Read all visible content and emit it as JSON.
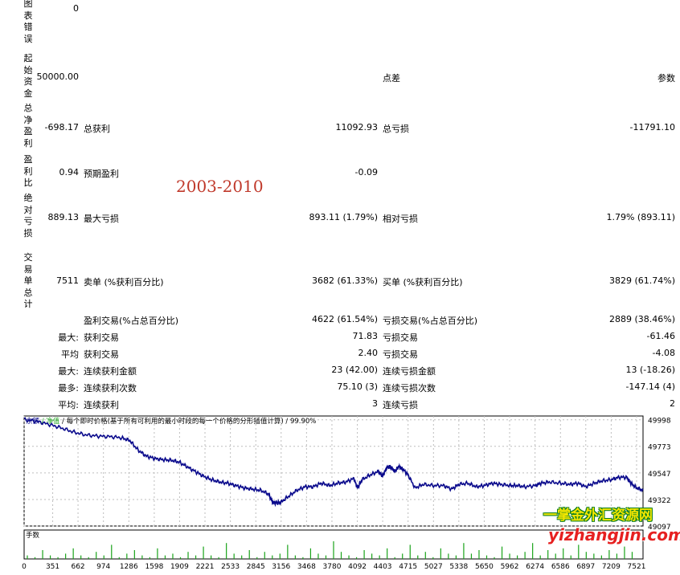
{
  "report": {
    "chart_errors": {
      "label": "图表错误",
      "value": "0"
    },
    "initial_deposit": {
      "label": "起始资金",
      "value": "50000.00",
      "spread_label": "点差",
      "params_label": "参数"
    },
    "total_net_profit": {
      "label": "总净盈利",
      "value": "-698.17",
      "gross_profit_label": "总获利",
      "gross_profit": "11092.93",
      "gross_loss_label": "总亏损",
      "gross_loss": "-11791.10"
    },
    "profit_factor": {
      "label": "盈利比",
      "value": "0.94",
      "expected_payoff_label": "预期盈利",
      "expected_payoff": "-0.09"
    },
    "absolute_drawdown": {
      "label": "绝对亏损",
      "value": "889.13",
      "max_drawdown_label": "最大亏损",
      "max_drawdown": "893.11 (1.79%)",
      "relative_drawdown_label": "相对亏损",
      "relative_drawdown": "1.79% (893.11)"
    },
    "total_trades": {
      "label": "交易单总计",
      "value": "7511",
      "short_label": "卖单 (%获利百分比)",
      "short_value": "3682 (61.33%)",
      "long_label": "买单 (%获利百分比)",
      "long_value": "3829 (61.74%)"
    },
    "profit_trades": {
      "label": "盈利交易(%占总百分比)",
      "value": "4622 (61.54%)",
      "loss_label": "亏损交易(%占总百分比)",
      "loss_value": "2889 (38.46%)"
    },
    "rows": [
      {
        "prefix": "最大:",
        "left_label": "获利交易",
        "left_value": "71.83",
        "right_label": "亏损交易",
        "right_value": "-61.46"
      },
      {
        "prefix": "平均",
        "left_label": "获利交易",
        "left_value": "2.40",
        "right_label": "亏损交易",
        "right_value": "-4.08"
      },
      {
        "prefix": "最大:",
        "left_label": "连续获利金额",
        "left_value": "23 (42.00)",
        "right_label": "连续亏损金额",
        "right_value": "13 (-18.26)"
      },
      {
        "prefix": "最多:",
        "left_label": "连续获利次数",
        "left_value": "75.10 (3)",
        "right_label": "连续亏损次数",
        "right_value": "-147.14 (4)"
      },
      {
        "prefix": "平均:",
        "left_label": "连续获利",
        "left_value": "3",
        "right_label": "连续亏损",
        "right_value": "2"
      }
    ]
  },
  "overlay": {
    "year_range": "2003-2010",
    "watermark_cn": "一掌金外汇资源网",
    "watermark_url": "yizhangjin.com"
  },
  "chart_data": {
    "type": "line",
    "title": "余额 / 净值 / 每个即时价格(基于所有可利用的最小时段的每一个价格的分形插值计算) / 99.90%",
    "title_parts": [
      "余额",
      "净值",
      "每个即时价格(基于所有可利用的最小时段的每一个价格的分形插值计算) / 99.90%"
    ],
    "lower_panel_label": "手数",
    "ylim": [
      49097,
      50030
    ],
    "y_ticks": [
      49998,
      49773,
      49547,
      49322,
      49097
    ],
    "x_ticks": [
      0,
      351,
      662,
      974,
      1286,
      1598,
      1909,
      2221,
      2533,
      2845,
      3156,
      3468,
      3780,
      4092,
      4403,
      4715,
      5027,
      5338,
      5650,
      5962,
      6274,
      6586,
      6897,
      7209,
      7521
    ],
    "xlim": [
      0,
      7600
    ],
    "series": [
      {
        "name": "余额",
        "color": "#0a0a8c",
        "x": [
          0,
          150,
          300,
          450,
          600,
          750,
          900,
          1050,
          1200,
          1300,
          1400,
          1500,
          1600,
          1700,
          1800,
          1900,
          2000,
          2100,
          2200,
          2300,
          2400,
          2500,
          2600,
          2700,
          2800,
          2900,
          3000,
          3050,
          3100,
          3156,
          3250,
          3350,
          3450,
          3550,
          3650,
          3750,
          3850,
          3950,
          4050,
          4092,
          4150,
          4250,
          4350,
          4403,
          4450,
          4500,
          4550,
          4600,
          4650,
          4715,
          4800,
          4900,
          5027,
          5150,
          5250,
          5338,
          5450,
          5550,
          5650,
          5750,
          5850,
          5962,
          6050,
          6150,
          6274,
          6350,
          6450,
          6586,
          6700,
          6800,
          6897,
          7000,
          7100,
          7209,
          7300,
          7400,
          7450,
          7521,
          7600
        ],
        "y": [
          50000,
          49985,
          49960,
          49930,
          49895,
          49870,
          49860,
          49855,
          49845,
          49820,
          49740,
          49690,
          49670,
          49660,
          49655,
          49640,
          49600,
          49560,
          49520,
          49490,
          49470,
          49460,
          49440,
          49420,
          49410,
          49400,
          49370,
          49300,
          49290,
          49300,
          49350,
          49400,
          49430,
          49430,
          49460,
          49440,
          49460,
          49470,
          49500,
          49420,
          49490,
          49530,
          49560,
          49520,
          49590,
          49600,
          49560,
          49600,
          49580,
          49530,
          49420,
          49450,
          49440,
          49440,
          49410,
          49450,
          49460,
          49430,
          49440,
          49460,
          49450,
          49440,
          49440,
          49430,
          49440,
          49460,
          49470,
          49460,
          49450,
          49460,
          49430,
          49460,
          49480,
          49490,
          49510,
          49510,
          49460,
          49420,
          49400
        ]
      }
    ],
    "volume_bars": [
      0.2,
      0.1,
      0.5,
      0.2,
      0.1,
      0.3,
      0.6,
      0.2,
      0.1,
      0.4,
      0.2,
      0.8,
      0.1,
      0.3,
      0.5,
      0.2,
      0.1,
      0.6,
      0.2,
      0.3,
      0.1,
      0.4,
      0.2,
      0.7,
      0.2,
      0.1,
      0.9,
      0.3,
      0.2,
      0.5,
      0.1,
      0.4,
      0.2,
      0.3,
      0.8,
      0.2,
      0.1,
      0.6,
      0.3,
      0.2,
      1.0,
      0.4,
      0.2,
      0.1,
      0.5,
      0.3,
      0.2,
      0.6,
      0.1,
      0.3,
      0.8,
      0.2,
      0.4,
      0.1,
      0.6,
      0.3,
      0.2,
      0.9,
      0.3,
      0.5,
      0.2,
      0.1,
      0.7,
      0.3,
      0.2,
      0.4,
      0.9,
      0.2,
      0.5,
      0.3,
      0.6,
      0.2,
      0.8,
      0.4,
      0.3,
      0.2,
      0.5,
      0.3,
      0.7,
      0.4
    ]
  },
  "colors": {
    "balance_line": "#0a0a8c",
    "volume": "#1aa31a",
    "grid": "#bdbdbd"
  }
}
